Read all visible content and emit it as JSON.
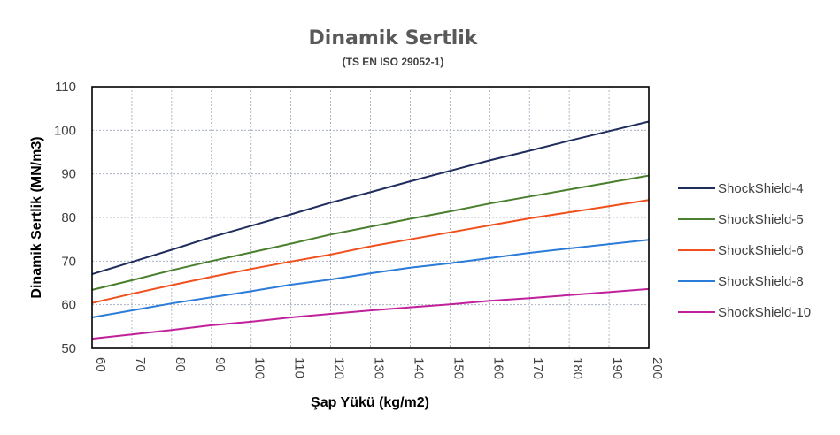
{
  "chart_data": {
    "type": "line",
    "title": "Dinamik Sertlik",
    "subtitle": "(TS EN ISO 29052-1)",
    "xlabel": "Şap Yükü (kg/m2)",
    "ylabel": "Dinamik Sertlik (MN/m3)",
    "x": [
      60,
      70,
      80,
      90,
      100,
      110,
      120,
      130,
      140,
      150,
      160,
      170,
      180,
      190,
      200
    ],
    "xlim": [
      60,
      200
    ],
    "ylim": [
      50,
      110
    ],
    "yticks": [
      50,
      60,
      70,
      80,
      90,
      100,
      110
    ],
    "grid": true,
    "legend_position": "right",
    "series": [
      {
        "name": "ShockShield-4",
        "color": "#1f2d5c",
        "values": [
          67,
          69.8,
          72.6,
          75.5,
          78.1,
          80.7,
          83.4,
          85.8,
          88.3,
          90.7,
          93.1,
          95.3,
          97.6,
          99.8,
          102
        ]
      },
      {
        "name": "ShockShield-5",
        "color": "#4a7f2e",
        "values": [
          63.4,
          65.6,
          67.9,
          70,
          72,
          74,
          76.1,
          77.9,
          79.7,
          81.4,
          83.2,
          84.8,
          86.4,
          88,
          89.6
        ]
      },
      {
        "name": "ShockShield-6",
        "color": "#f0501e",
        "values": [
          60.4,
          62.5,
          64.5,
          66.4,
          68.2,
          69.9,
          71.5,
          73.4,
          75,
          76.6,
          78.2,
          79.8,
          81.2,
          82.6,
          84
        ]
      },
      {
        "name": "ShockShield-8",
        "color": "#2b7bd8",
        "values": [
          57.1,
          58.7,
          60.3,
          61.7,
          63.1,
          64.6,
          65.8,
          67.2,
          68.5,
          69.5,
          70.7,
          71.9,
          72.9,
          73.9,
          74.9
        ]
      },
      {
        "name": "ShockShield-10",
        "color": "#c0209a",
        "values": [
          52.2,
          53.2,
          54.2,
          55.3,
          56.1,
          57.1,
          57.9,
          58.7,
          59.4,
          60.1,
          60.9,
          61.5,
          62.2,
          62.9,
          63.6
        ]
      }
    ]
  }
}
